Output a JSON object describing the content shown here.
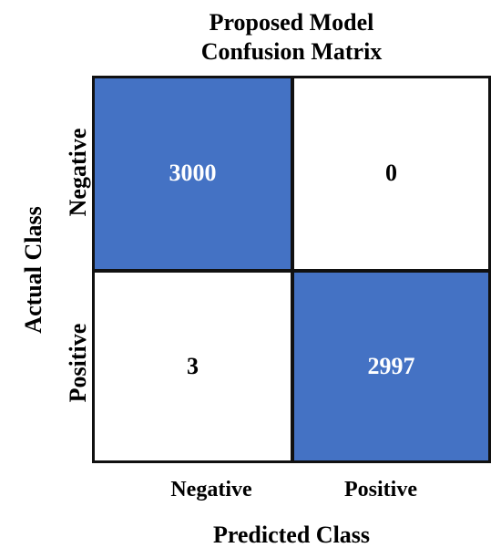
{
  "chart_data": {
    "type": "heatmap",
    "title": "Proposed Model",
    "subtitle": "Confusion Matrix",
    "xlabel": "Predicted Class",
    "ylabel": "Actual Class",
    "x_categories": [
      "Negative",
      "Positive"
    ],
    "y_categories": [
      "Negative",
      "Positive"
    ],
    "values": [
      [
        3000,
        0
      ],
      [
        3,
        2997
      ]
    ],
    "colors": {
      "high": "#4472C4",
      "low": "#ffffff",
      "text_on_high": "#ffffff",
      "text_on_low": "#000000"
    }
  }
}
